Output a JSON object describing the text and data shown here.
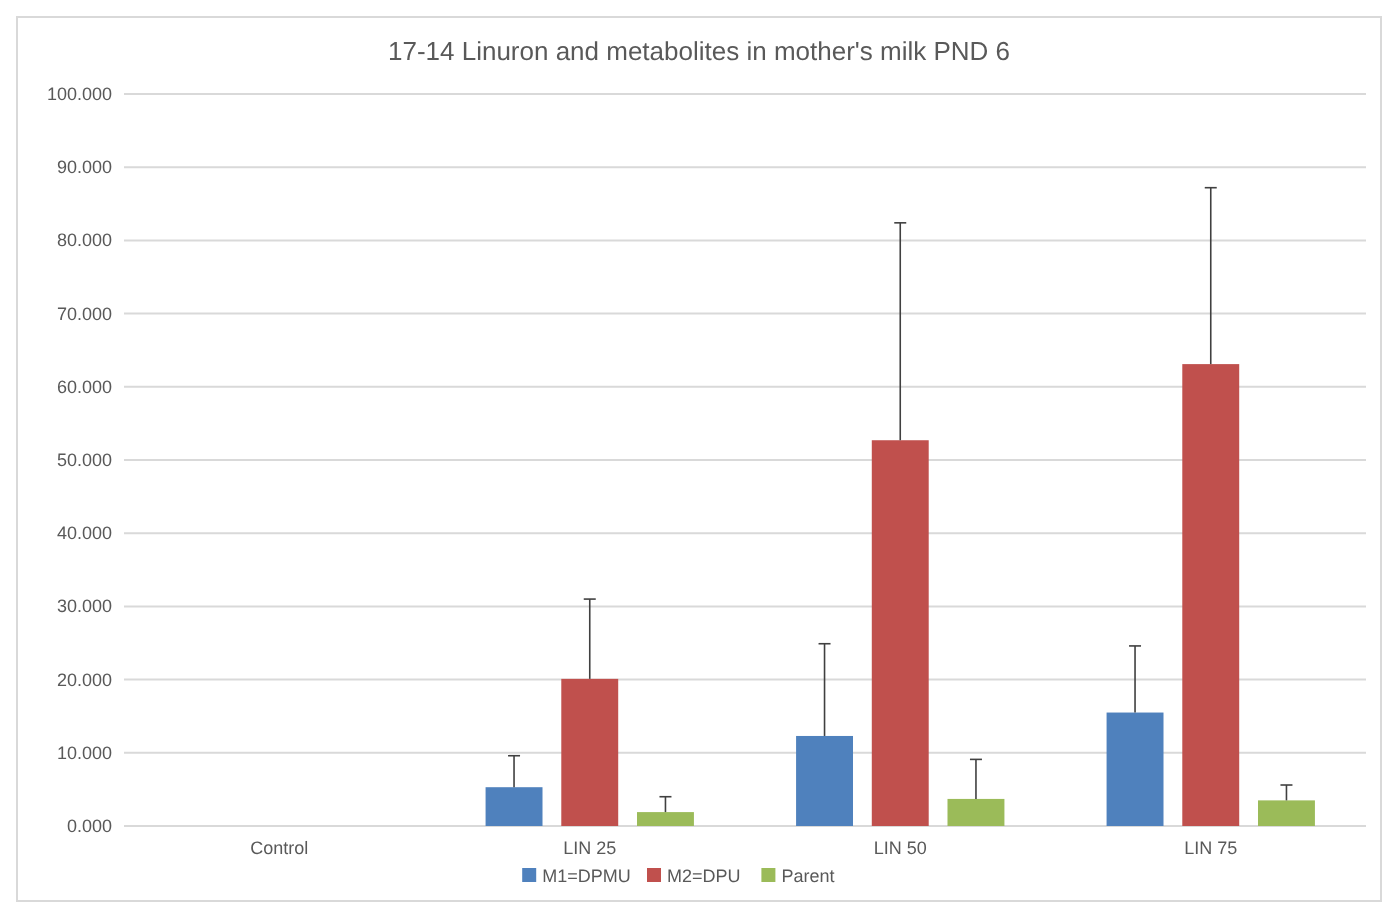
{
  "chart_data": {
    "type": "bar",
    "title": "17-14 Linuron and metabolites in mother's milk PND 6",
    "categories": [
      "Control",
      "LIN 25",
      "LIN 50",
      "LIN 75"
    ],
    "series": [
      {
        "name": "M1=DPMU",
        "color": "#4f81bd",
        "values": [
          0,
          5.3,
          12.3,
          15.5
        ],
        "errors": [
          null,
          [
            5.3,
            9.6
          ],
          [
            12.3,
            24.9
          ],
          [
            15.5,
            24.6
          ]
        ]
      },
      {
        "name": "M2=DPU",
        "color": "#c0504d",
        "values": [
          0,
          20.1,
          52.7,
          63.1
        ],
        "errors": [
          null,
          [
            20.1,
            31.0
          ],
          [
            52.7,
            82.4
          ],
          [
            63.1,
            87.2
          ]
        ]
      },
      {
        "name": "Parent",
        "color": "#9bbb59",
        "values": [
          0,
          1.9,
          3.7,
          3.5
        ],
        "errors": [
          null,
          [
            1.9,
            4.0
          ],
          [
            3.7,
            9.1
          ],
          [
            3.5,
            5.6
          ]
        ]
      }
    ],
    "ylim": [
      0,
      100
    ],
    "yticks": [
      {
        "value": 0,
        "label": "0.000"
      },
      {
        "value": 10,
        "label": "10.000"
      },
      {
        "value": 20,
        "label": "20.000"
      },
      {
        "value": 30,
        "label": "30.000"
      },
      {
        "value": 40,
        "label": "40.000"
      },
      {
        "value": 50,
        "label": "50.000"
      },
      {
        "value": 60,
        "label": "60.000"
      },
      {
        "value": 70,
        "label": "70.000"
      },
      {
        "value": 80,
        "label": "80.000"
      },
      {
        "value": 90,
        "label": "90.000"
      },
      {
        "value": 100,
        "label": "100.000"
      }
    ],
    "grid": "y",
    "legend": "bottom"
  }
}
